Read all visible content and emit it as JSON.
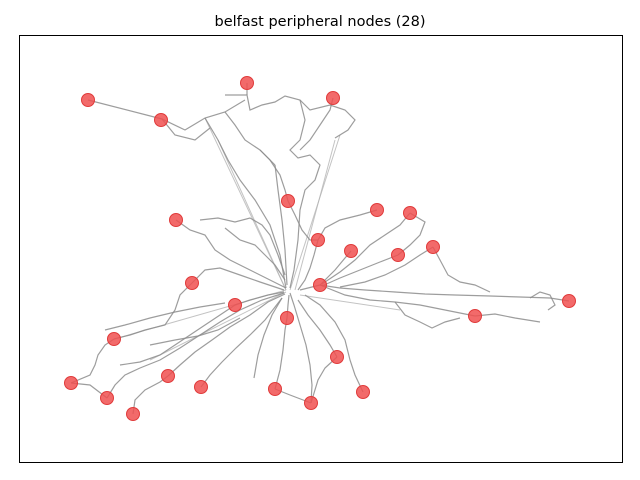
{
  "figure": {
    "title": "belfast peripheral nodes (28)"
  },
  "colors": {
    "edge": "#8c8c8c",
    "node": "#f05050",
    "frame": "#000000"
  },
  "graph": {
    "node_count": 28
  }
}
